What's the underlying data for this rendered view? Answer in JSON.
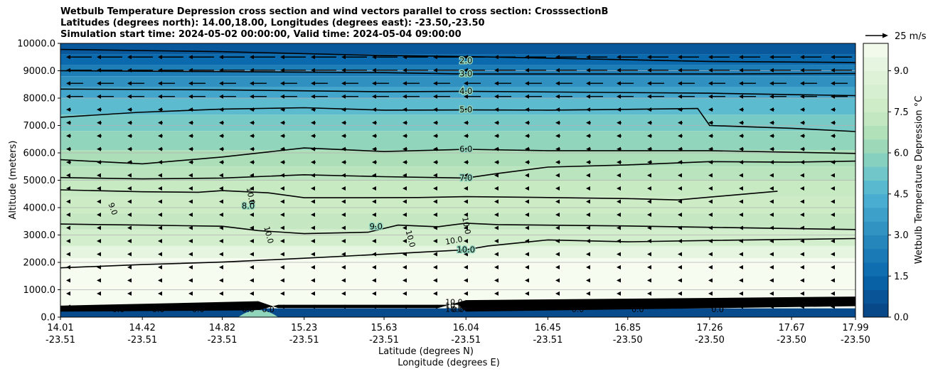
{
  "title_lines": [
    "Wetbulb Temperature Depression cross section and wind vectors parallel to cross section: CrosssectionB",
    "Latitudes (degrees north): 14.00,18.00, Longitudes (degrees east): -23.50,-23.50",
    "Simulation start time: 2024-05-02 00:00:00, Valid time: 2024-05-04 09:00:00"
  ],
  "chart_data": {
    "type": "heatmap",
    "title": "Wetbulb Temperature Depression cross section and wind vectors parallel to cross section: CrosssectionB",
    "ylabel": "Altitude (meters)",
    "xlabel": "Latitude (degrees N)",
    "xlabel2": "Longitude (degrees E)",
    "ylim": [
      0,
      10000
    ],
    "y_ticks": [
      "0.0",
      "1000.0",
      "2000.0",
      "3000.0",
      "4000.0",
      "5000.0",
      "6000.0",
      "7000.0",
      "8000.0",
      "9000.0",
      "10000.0"
    ],
    "y_tick_values": [
      0,
      1000,
      2000,
      3000,
      4000,
      5000,
      6000,
      7000,
      8000,
      9000,
      10000
    ],
    "x_ticks": [
      {
        "lat": "14.01",
        "lon": "-23.51"
      },
      {
        "lat": "14.42",
        "lon": "-23.51"
      },
      {
        "lat": "14.82",
        "lon": "-23.51"
      },
      {
        "lat": "15.23",
        "lon": "-23.51"
      },
      {
        "lat": "15.63",
        "lon": "-23.51"
      },
      {
        "lat": "16.04",
        "lon": "-23.51"
      },
      {
        "lat": "16.45",
        "lon": "-23.51"
      },
      {
        "lat": "16.85",
        "lon": "-23.50"
      },
      {
        "lat": "17.26",
        "lon": "-23.50"
      },
      {
        "lat": "17.67",
        "lon": "-23.50"
      },
      {
        "lat": "17.99",
        "lon": "-23.50"
      }
    ],
    "xlim": [
      14.01,
      17.99
    ],
    "grid": true,
    "colorbar": {
      "label": "Wetbulb Temperature Depression °C",
      "range": [
        0,
        10
      ],
      "ticks": [
        "0.0",
        "1.5",
        "3.0",
        "4.5",
        "6.0",
        "7.5",
        "9.0"
      ],
      "tick_values": [
        0,
        1.5,
        3,
        4.5,
        6,
        7.5,
        9
      ],
      "cmap": "GnBu_r"
    },
    "contour_labels": [
      "2.0",
      "3.0",
      "4.0",
      "5.0",
      "6.0",
      "7.0",
      "8.0",
      "9.0",
      "10.0"
    ],
    "contour_lines": [
      {
        "level": 2.0,
        "points": [
          [
            14.01,
            9780
          ],
          [
            14.8,
            9700
          ],
          [
            15.6,
            9560
          ],
          [
            16.04,
            9520
          ],
          [
            16.45,
            9460
          ],
          [
            16.85,
            9400
          ],
          [
            17.26,
            9340
          ],
          [
            17.99,
            9300
          ]
        ]
      },
      {
        "level": 3.0,
        "points": [
          [
            14.01,
            9000
          ],
          [
            14.82,
            8970
          ],
          [
            15.63,
            8930
          ],
          [
            16.04,
            8880
          ],
          [
            17.26,
            8880
          ],
          [
            17.99,
            8900
          ]
        ]
      },
      {
        "level": 4.0,
        "points": [
          [
            14.01,
            8330
          ],
          [
            14.82,
            8300
          ],
          [
            15.63,
            8230
          ],
          [
            16.04,
            8250
          ],
          [
            17.26,
            8180
          ],
          [
            17.99,
            8090
          ]
        ]
      },
      {
        "level": 5.0,
        "points": [
          [
            14.01,
            7300
          ],
          [
            14.4,
            7480
          ],
          [
            14.82,
            7600
          ],
          [
            15.23,
            7650
          ],
          [
            15.63,
            7560
          ],
          [
            16.04,
            7570
          ],
          [
            16.45,
            7560
          ],
          [
            16.85,
            7590
          ],
          [
            17.2,
            7620
          ],
          [
            17.26,
            7000
          ],
          [
            17.67,
            6900
          ],
          [
            17.99,
            6780
          ]
        ]
      },
      {
        "level": 6.0,
        "points": [
          [
            14.01,
            5750
          ],
          [
            14.42,
            5600
          ],
          [
            14.82,
            5850
          ],
          [
            15.23,
            6180
          ],
          [
            15.63,
            6050
          ],
          [
            16.04,
            6130
          ],
          [
            16.45,
            6080
          ],
          [
            16.85,
            6080
          ],
          [
            17.26,
            6080
          ],
          [
            17.99,
            5980
          ]
        ]
      },
      {
        "level": 7.0,
        "points": [
          [
            14.01,
            5100
          ],
          [
            14.42,
            5050
          ],
          [
            14.82,
            5080
          ],
          [
            15.23,
            5200
          ],
          [
            15.63,
            5130
          ],
          [
            16.04,
            5080
          ],
          [
            16.2,
            5250
          ],
          [
            16.45,
            5480
          ],
          [
            16.85,
            5560
          ],
          [
            17.26,
            5680
          ],
          [
            17.67,
            5660
          ],
          [
            17.99,
            5700
          ]
        ]
      },
      {
        "level": 8.0,
        "points": [
          [
            14.01,
            4650
          ],
          [
            14.42,
            4580
          ],
          [
            14.7,
            4560
          ],
          [
            14.82,
            4620
          ],
          [
            15.05,
            4540
          ],
          [
            15.23,
            4360
          ],
          [
            15.5,
            4360
          ],
          [
            15.8,
            4370
          ],
          [
            16.04,
            4400
          ],
          [
            16.45,
            4370
          ],
          [
            16.85,
            4330
          ],
          [
            17.1,
            4280
          ],
          [
            17.6,
            4600
          ]
        ]
      },
      {
        "level": 9.0,
        "points": [
          [
            14.01,
            3400
          ],
          [
            14.42,
            3360
          ],
          [
            14.82,
            3320
          ],
          [
            15.0,
            3160
          ],
          [
            15.23,
            3050
          ],
          [
            15.55,
            3100
          ],
          [
            15.7,
            3360
          ],
          [
            15.9,
            3300
          ],
          [
            16.04,
            3430
          ],
          [
            16.2,
            3380
          ],
          [
            16.85,
            3330
          ],
          [
            17.26,
            3280
          ],
          [
            17.99,
            3200
          ]
        ]
      },
      {
        "level": 10.0,
        "points": [
          [
            14.01,
            1800
          ],
          [
            14.42,
            1920
          ],
          [
            14.82,
            2010
          ],
          [
            15.23,
            2150
          ],
          [
            15.63,
            2300
          ],
          [
            16.04,
            2460
          ],
          [
            16.15,
            2600
          ],
          [
            16.45,
            2820
          ],
          [
            16.85,
            2750
          ],
          [
            17.26,
            2800
          ],
          [
            17.99,
            2870
          ]
        ]
      }
    ],
    "wind_vectors_reference": "25 m/s",
    "surface_zero_labels": [
      "0.0",
      "0.0",
      "0.0",
      "0.0",
      "0.0",
      "0.0",
      "0.0",
      "0.0",
      "0.0"
    ],
    "surface_ten_labels": [
      "10.0",
      "10.0",
      "10.0"
    ]
  }
}
